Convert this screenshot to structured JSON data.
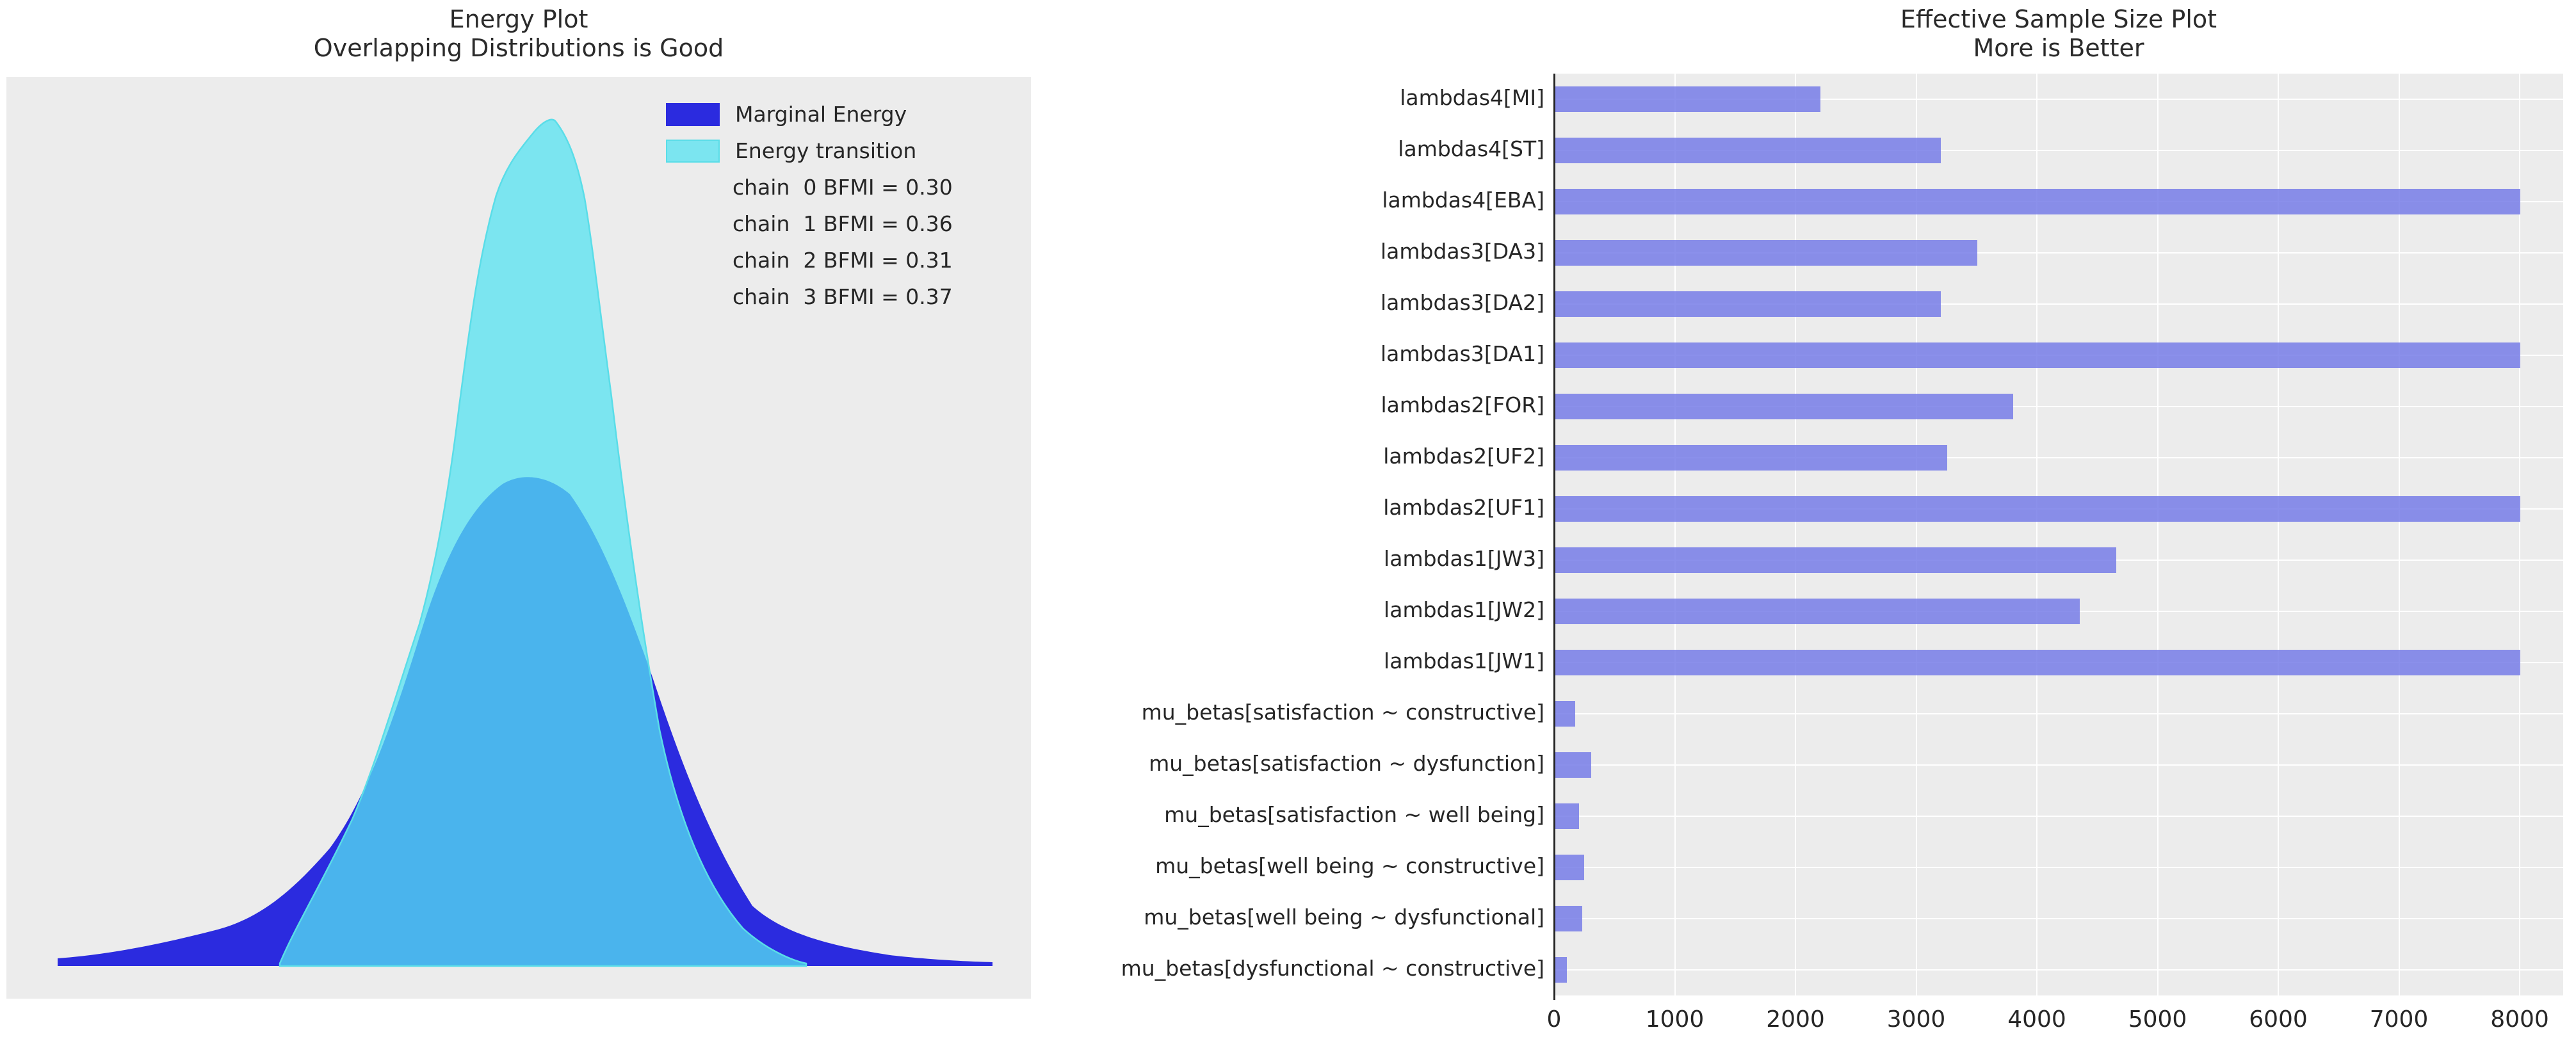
{
  "colors": {
    "figure_background": "#ffffff",
    "axes_background": "#ececec",
    "gridline": "#ffffff",
    "text": "#262626",
    "marginal_energy_fill": "#2b2bdf",
    "energy_transition_fill_rgba": "rgba(86,227,242,0.75)",
    "energy_transition_stroke": "#5adde8",
    "bar_fill_rgba": "rgba(114,120,231,0.82)",
    "spine": "#262626"
  },
  "left_plot": {
    "title": "Energy Plot\nOverlapping Distributions is Good",
    "legend": [
      {
        "label": "Marginal Energy",
        "swatch_color": "#2b2bdf",
        "swatch_border": "#2b2bdf"
      },
      {
        "label": "Energy transition",
        "swatch_color": "#7be5f0",
        "swatch_border": "#5adde8"
      }
    ],
    "chain_annotations": [
      "chain  0 BFMI = 0.30",
      "chain  1 BFMI = 0.36",
      "chain  2 BFMI = 0.31",
      "chain  3 BFMI = 0.37"
    ]
  },
  "right_plot": {
    "title": "Effective Sample Size Plot\nMore is Better"
  },
  "chart_data": [
    {
      "type": "area",
      "subtype": "kde-density",
      "title": "Energy Plot Overlapping Distributions is Good",
      "legend_position": "upper right",
      "grid": false,
      "axes_labels_visible": false,
      "series": [
        {
          "name": "Marginal Energy",
          "color": "#2b2bdf",
          "shape": "wide bell curve",
          "peak_x_fraction": 0.52,
          "peak_height_fraction": 0.47,
          "base_x_fraction_range": [
            0.05,
            0.96
          ]
        },
        {
          "name": "Energy transition",
          "color": "#7be5f0",
          "shape": "tall narrow bell curve with left shoulder",
          "peak_x_fraction": 0.53,
          "peak_height_fraction": 0.96,
          "base_x_fraction_range": [
            0.27,
            0.78
          ]
        }
      ],
      "annotations": [
        "chain  0 BFMI = 0.30",
        "chain  1 BFMI = 0.36",
        "chain  2 BFMI = 0.31",
        "chain  3 BFMI = 0.37"
      ]
    },
    {
      "type": "bar",
      "orientation": "horizontal",
      "title": "Effective Sample Size Plot More is Better",
      "xlabel": "",
      "ylabel": "",
      "xlim": [
        0,
        8360
      ],
      "xticks": [
        0,
        1000,
        2000,
        3000,
        4000,
        5000,
        6000,
        7000,
        8000
      ],
      "grid": true,
      "bar_color": "#7c82e7",
      "categories_top_to_bottom": [
        "lambdas4[MI]",
        "lambdas4[ST]",
        "lambdas4[EBA]",
        "lambdas3[DA3]",
        "lambdas3[DA2]",
        "lambdas3[DA1]",
        "lambdas2[FOR]",
        "lambdas2[UF2]",
        "lambdas2[UF1]",
        "lambdas1[JW3]",
        "lambdas1[JW2]",
        "lambdas1[JW1]",
        "mu_betas[satisfaction ~ constructive]",
        "mu_betas[satisfaction ~ dysfunction]",
        "mu_betas[satisfaction ~ well being]",
        "mu_betas[well being ~ constructive]",
        "mu_betas[well being ~ dysfunctional]",
        "mu_betas[dysfunctional ~ constructive]"
      ],
      "values": [
        2200,
        3200,
        8000,
        3500,
        3200,
        8000,
        3800,
        3250,
        8000,
        4650,
        4350,
        8000,
        170,
        300,
        200,
        245,
        230,
        100
      ]
    }
  ]
}
